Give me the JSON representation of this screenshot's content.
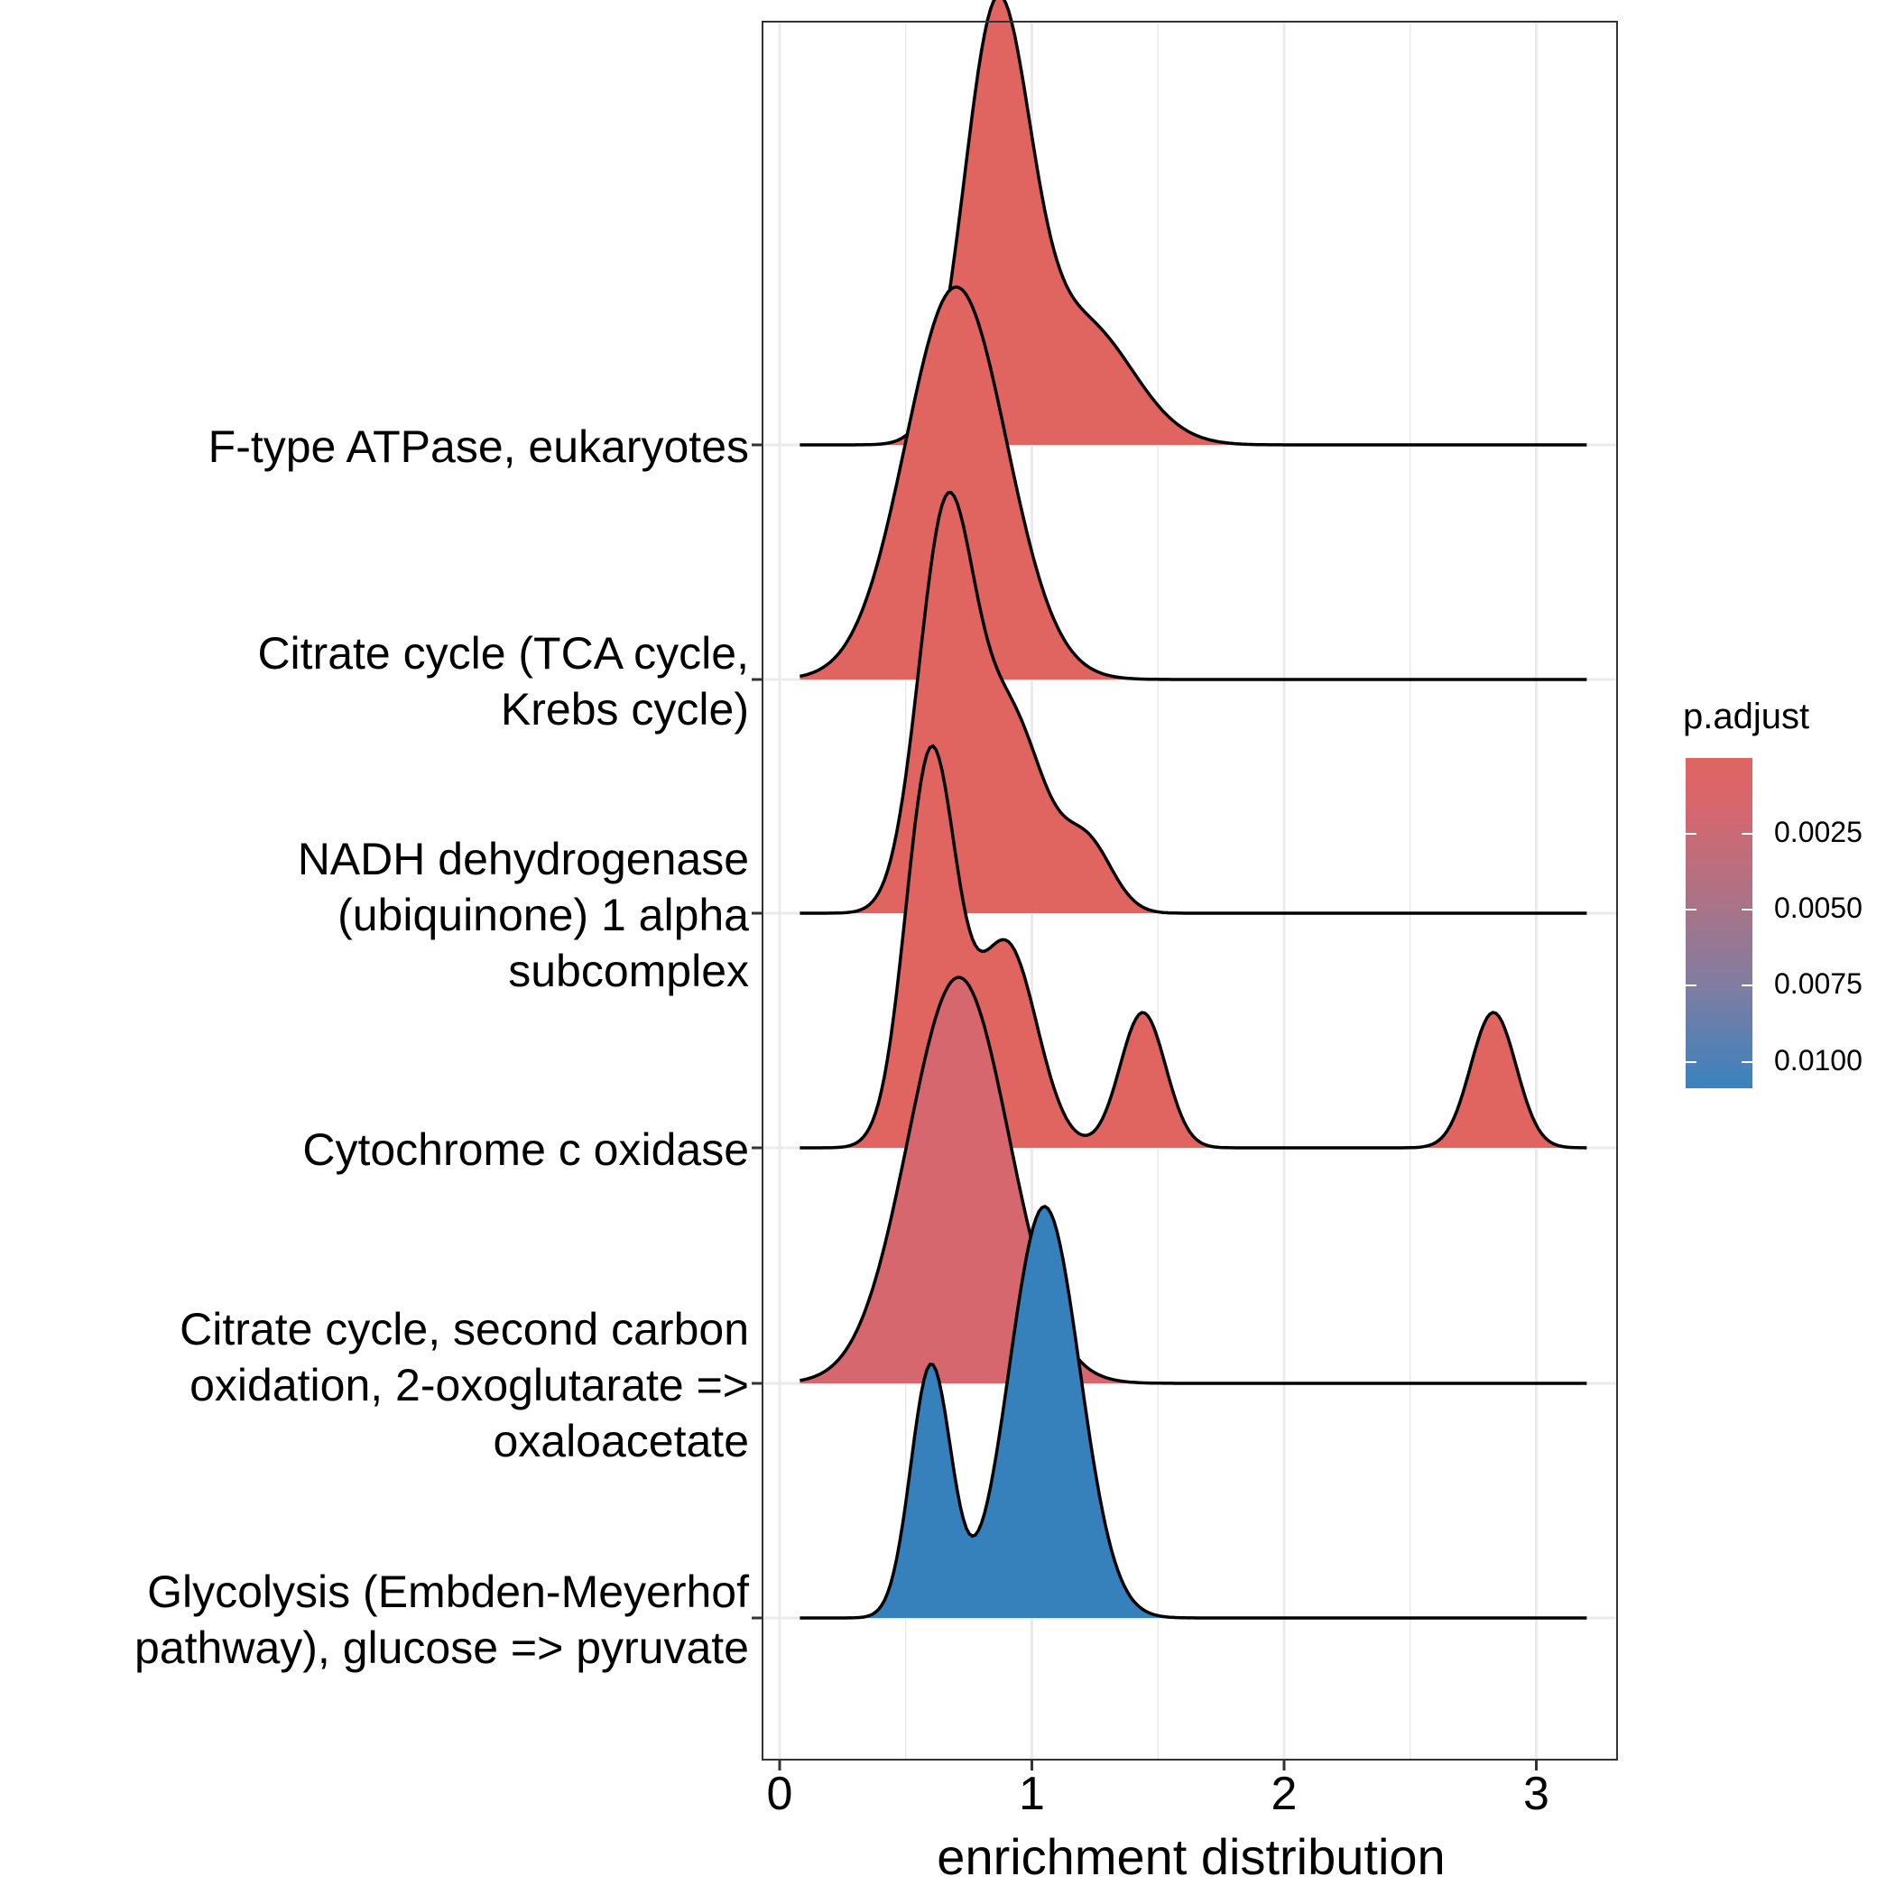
{
  "chart_data": {
    "type": "ridgeline",
    "xlabel": "enrichment distribution",
    "x_ticks": [
      "0",
      "1",
      "2",
      "3"
    ],
    "xlim": [
      -0.07,
      3.35
    ],
    "categories": [
      "F-type ATPase, eukaryotes",
      "Citrate cycle (TCA cycle, Krebs cycle)",
      "NADH dehydrogenase (ubiquinone) 1 alpha subcomplex",
      "Cytochrome c oxidase",
      "Citrate cycle, second carbon oxidation, 2-oxoglutarate => oxaloacetate",
      "Glycolysis (Embden-Meyerhof pathway), glucose => pyruvate"
    ],
    "category_labels": [
      [
        "F-type ATPase, eukaryotes"
      ],
      [
        "Citrate cycle (TCA cycle,",
        "Krebs cycle)"
      ],
      [
        "NADH dehydrogenase",
        "(ubiquinone) 1 alpha",
        "subcomplex"
      ],
      [
        "Cytochrome c oxidase"
      ],
      [
        "Citrate cycle, second carbon",
        "oxidation, 2-oxoglutarate =>",
        "oxaloacetate"
      ],
      [
        "Glycolysis (Embden-Meyerhof",
        "pathway), glucose => pyruvate"
      ]
    ],
    "x_range": [
      0.08,
      3.2
    ],
    "series": [
      {
        "name": "F-type ATPase, eukaryotes",
        "p_adjust": 0.0001,
        "color": "#E06561",
        "components": [
          {
            "mu": 0.86,
            "sigma": 0.13,
            "h": 1.55
          },
          {
            "mu": 1.2,
            "sigma": 0.2,
            "h": 0.45
          }
        ]
      },
      {
        "name": "Citrate cycle (TCA cycle, Krebs cycle)",
        "p_adjust": 0.0002,
        "color": "#E06561",
        "components": [
          {
            "mu": 0.7,
            "sigma": 0.2,
            "h": 1.45
          }
        ]
      },
      {
        "name": "NADH dehydrogenase (ubiquinone) 1 alpha subcomplex",
        "p_adjust": 0.0002,
        "color": "#E06561",
        "components": [
          {
            "mu": 0.66,
            "sigma": 0.11,
            "h": 1.45
          },
          {
            "mu": 0.92,
            "sigma": 0.13,
            "h": 0.7
          },
          {
            "mu": 1.22,
            "sigma": 0.1,
            "h": 0.25
          }
        ]
      },
      {
        "name": "Cytochrome c oxidase",
        "p_adjust": 0.0003,
        "color": "#E06561",
        "components": [
          {
            "mu": 0.6,
            "sigma": 0.1,
            "h": 1.45
          },
          {
            "mu": 0.9,
            "sigma": 0.12,
            "h": 0.75
          },
          {
            "mu": 1.44,
            "sigma": 0.09,
            "h": 0.5
          },
          {
            "mu": 2.83,
            "sigma": 0.09,
            "h": 0.5
          }
        ]
      },
      {
        "name": "Citrate cycle, second carbon oxidation, 2-oxoglutarate => oxaloacetate",
        "p_adjust": 0.0015,
        "color": "#D6676E",
        "components": [
          {
            "mu": 0.71,
            "sigma": 0.2,
            "h": 1.5
          }
        ]
      },
      {
        "name": "Glycolysis (Embden-Meyerhof pathway), glucose => pyruvate",
        "p_adjust": 0.0108,
        "color": "#3680BC",
        "components": [
          {
            "mu": 0.6,
            "sigma": 0.08,
            "h": 0.93
          },
          {
            "mu": 1.05,
            "sigma": 0.14,
            "h": 1.52
          }
        ]
      }
    ],
    "legend": {
      "title": "p.adjust",
      "position": "right",
      "labels": [
        "0.0025",
        "0.0050",
        "0.0075",
        "0.0100"
      ],
      "values": [
        0.0025,
        0.005,
        0.0075,
        0.01
      ],
      "range": [
        5e-05,
        0.0109
      ],
      "colors": [
        "#E06561",
        "#3A82BE"
      ]
    },
    "grid": true
  }
}
